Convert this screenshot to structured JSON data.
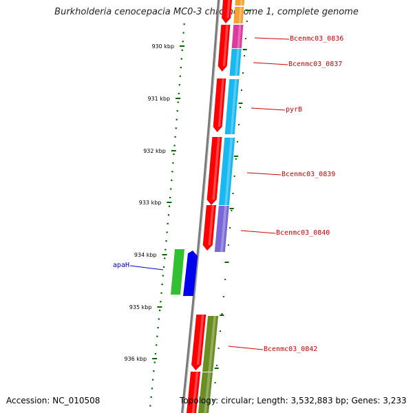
{
  "title": "Burkholderia cenocepacia MC0-3 chromosome 1, complete genome",
  "footer": {
    "accession": "Accession: NC_010508",
    "topology": "Topology: circular; Length: 3,532,883 bp; Genes: 3,233"
  },
  "ticks": [
    {
      "label": "930 kbp"
    },
    {
      "label": "931 kbp"
    },
    {
      "label": "932 kbp"
    },
    {
      "label": "933 kbp"
    },
    {
      "label": "934 kbp"
    },
    {
      "label": "935 kbp"
    },
    {
      "label": "936 kbp"
    }
  ],
  "gene_labels": [
    {
      "label": "Bcenmc03_0836",
      "color": "#cc0000"
    },
    {
      "label": "Bcenmc03_0837",
      "color": "#cc0000"
    },
    {
      "label": "pyrB",
      "color": "#cc0000"
    },
    {
      "label": "Bcenmc03_0839",
      "color": "#cc0000"
    },
    {
      "label": "Bcenmc03_0840",
      "color": "#cc0000"
    },
    {
      "label": "apaH",
      "color": "#0000cc"
    },
    {
      "label": "Bcenmc03_0842",
      "color": "#cc0000"
    }
  ],
  "colors": {
    "cds": "#ff0000",
    "cog_cyan": "#18b8f0",
    "cog_magenta": "#e0389c",
    "cog_orange": "#f5a030",
    "cog_purple": "#7b68d8",
    "cog_olive": "#6b8e23",
    "cog_green": "#30c030",
    "cds_blue": "#0000ee",
    "tick_green": "#006400",
    "backbone": "#7a7a7a"
  }
}
